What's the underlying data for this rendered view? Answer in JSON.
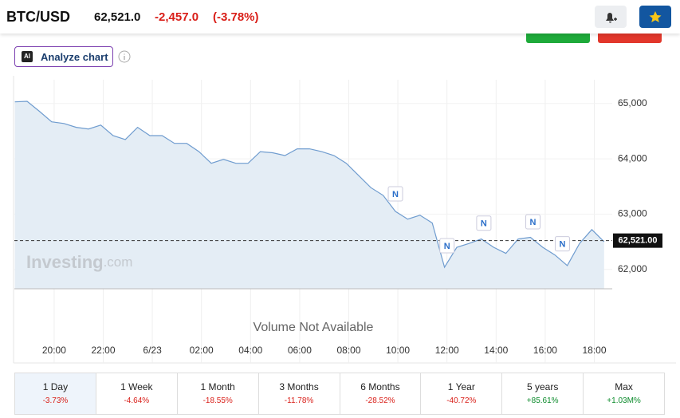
{
  "header": {
    "symbol": "BTC/USD",
    "price": "62,521.0",
    "change": "-2,457.0",
    "change_pct": "(-3.78%)",
    "change_color": "#d91e18"
  },
  "toolbar": {
    "analyze_button": "Analyze chart",
    "ai_badge": "AI"
  },
  "chart_data": {
    "type": "area",
    "x": [
      18.4,
      18.9,
      19.4,
      19.9,
      20.4,
      20.9,
      21.4,
      21.9,
      22.4,
      22.9,
      23.4,
      23.9,
      24.4,
      24.9,
      25.4,
      25.9,
      26.4,
      26.9,
      27.4,
      27.9,
      28.4,
      28.9,
      29.4,
      29.9,
      30.4,
      30.9,
      31.4,
      31.9,
      32.4,
      32.9,
      33.4,
      33.9,
      34.4,
      34.9,
      35.4,
      35.9,
      36.4,
      36.9,
      37.4,
      37.9,
      38.4,
      38.9,
      39.4,
      39.9,
      40.4,
      40.9,
      41.4,
      41.9,
      42.4
    ],
    "values": [
      65030,
      65040,
      64860,
      64670,
      64640,
      64570,
      64540,
      64610,
      64420,
      64350,
      64570,
      64420,
      64420,
      64280,
      64280,
      64130,
      63920,
      63990,
      63920,
      63920,
      64130,
      64110,
      64060,
      64180,
      64180,
      64130,
      64060,
      63920,
      63700,
      63480,
      63340,
      63050,
      62910,
      62980,
      62840,
      62040,
      62400,
      62470,
      62550,
      62400,
      62290,
      62550,
      62580,
      62400,
      62260,
      62070,
      62470,
      62720,
      62500
    ],
    "color": "#6f9ccf",
    "fill": "#e4edf5",
    "xlim": [
      18.38,
      42.73
    ],
    "ylim": [
      61650,
      65430
    ],
    "xticks": [
      {
        "value": 20,
        "label": "20:00"
      },
      {
        "value": 22,
        "label": "22:00"
      },
      {
        "value": 24,
        "label": "6/23"
      },
      {
        "value": 26,
        "label": "02:00"
      },
      {
        "value": 28,
        "label": "04:00"
      },
      {
        "value": 30,
        "label": "06:00"
      },
      {
        "value": 32,
        "label": "08:00"
      },
      {
        "value": 34,
        "label": "10:00"
      },
      {
        "value": 36,
        "label": "12:00"
      },
      {
        "value": 38,
        "label": "14:00"
      },
      {
        "value": 40,
        "label": "16:00"
      },
      {
        "value": 42,
        "label": "18:00"
      }
    ],
    "yticks": [
      {
        "value": 62000,
        "label": "62,000"
      },
      {
        "value": 63000,
        "label": "63,000"
      },
      {
        "value": 64000,
        "label": "64,000"
      },
      {
        "value": 65000,
        "label": "65,000"
      }
    ],
    "grid": true,
    "last_price": {
      "value": 62521,
      "label": "62,521.00"
    },
    "news_markers": {
      "label": "N",
      "x": [
        33.9,
        36.0,
        37.5,
        39.5,
        40.7
      ]
    },
    "watermark": {
      "brand": "Investing",
      "suffix": ".com"
    },
    "volume_note": "Volume Not Available"
  },
  "periods": [
    {
      "label": "1 Day",
      "change": "-3.73%",
      "color": "#d91e18",
      "active": true
    },
    {
      "label": "1 Week",
      "change": "-4.64%",
      "color": "#d91e18"
    },
    {
      "label": "1 Month",
      "change": "-18.55%",
      "color": "#d91e18"
    },
    {
      "label": "3 Months",
      "change": "-11.78%",
      "color": "#d91e18"
    },
    {
      "label": "6 Months",
      "change": "-28.52%",
      "color": "#d91e18"
    },
    {
      "label": "1 Year",
      "change": "-40.72%",
      "color": "#d91e18"
    },
    {
      "label": "5 years",
      "change": "+85.61%",
      "color": "#0a8a2a"
    },
    {
      "label": "Max",
      "change": "+1.03M%",
      "color": "#0a8a2a"
    }
  ]
}
